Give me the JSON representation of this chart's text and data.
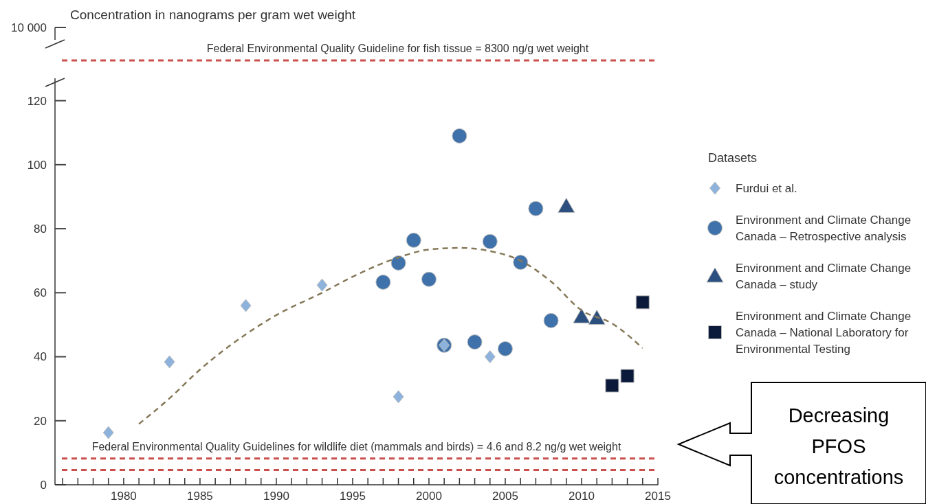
{
  "chart_data": [
    {
      "type": "other",
      "ylabel": "Concentration in nanograms per gram wet weight",
      "annotations": [
        "10 000",
        "Federal Environmental Quality Guideline for fish tissue = 8300 ng/g wet weight"
      ]
    },
    {
      "type": "scatter",
      "xlim": [
        1975.5,
        2015
      ],
      "ylim": [
        0,
        127
      ],
      "xticks": [
        {
          "value": 1976,
          "label": null
        },
        {
          "value": 1977,
          "label": null
        },
        {
          "value": 1978,
          "label": null
        },
        {
          "value": 1979,
          "label": null
        },
        1980,
        {
          "value": 1981,
          "label": null
        },
        {
          "value": 1982,
          "label": null
        },
        {
          "value": 1983,
          "label": null
        },
        {
          "value": 1984,
          "label": null
        },
        1985,
        {
          "value": 1986,
          "label": null
        },
        {
          "value": 1987,
          "label": null
        },
        {
          "value": 1988,
          "label": null
        },
        {
          "value": 1989,
          "label": null
        },
        1990,
        {
          "value": 1991,
          "label": null
        },
        {
          "value": 1992,
          "label": null
        },
        {
          "value": 1993,
          "label": null
        },
        {
          "value": 1994,
          "label": null
        },
        1995,
        {
          "value": 1996,
          "label": null
        },
        {
          "value": 1997,
          "label": null
        },
        {
          "value": 1998,
          "label": null
        },
        {
          "value": 1999,
          "label": null
        },
        2000,
        {
          "value": 2001,
          "label": null
        },
        {
          "value": 2002,
          "label": null
        },
        {
          "value": 2003,
          "label": null
        },
        {
          "value": 2004,
          "label": null
        },
        2005,
        {
          "value": 2006,
          "label": null
        },
        {
          "value": 2007,
          "label": null
        },
        {
          "value": 2008,
          "label": null
        },
        {
          "value": 2009,
          "label": null
        },
        2010,
        {
          "value": 2011,
          "label": null
        },
        {
          "value": 2012,
          "label": null
        },
        {
          "value": 2013,
          "label": null
        },
        {
          "value": 2014,
          "label": null
        },
        2015
      ],
      "yticks": [
        0,
        20,
        40,
        60,
        80,
        100,
        120
      ],
      "legend": "right",
      "legend_title": "Datasets",
      "series": [
        {
          "type": "line",
          "color": "#857858",
          "marker": "none",
          "line_style": "dashed",
          "x": [
            1981,
            1983,
            1985,
            1988,
            1990,
            1993,
            1995,
            1998,
            2000,
            2002,
            2004,
            2006,
            2008,
            2010,
            2012,
            2014
          ],
          "values": [
            19,
            27,
            36,
            47,
            53,
            60,
            65,
            71,
            73.5,
            74,
            73,
            70,
            63.5,
            54.5,
            50.4,
            42.7
          ]
        },
        {
          "name": "Furdui et al.",
          "color": "#8db3dd",
          "marker": "diamond",
          "x": [
            1979,
            1983,
            1988,
            1993,
            1998,
            2001,
            2004
          ],
          "values": [
            16.3,
            38.4,
            56,
            62.4,
            27.5,
            43.6,
            40
          ]
        },
        {
          "name": "Environment and Climate Change Canada – Retrospective analysis",
          "color": "#3f72aa",
          "marker": "circle",
          "x": [
            1997,
            1998,
            1999,
            2000,
            2001,
            2002,
            2003,
            2004,
            2005,
            2006,
            2007,
            2008
          ],
          "values": [
            63.3,
            69.3,
            76.4,
            64.2,
            43.6,
            109,
            44.6,
            76,
            42.5,
            69.5,
            86.3,
            51.3
          ]
        },
        {
          "name": "Environment and Climate Change Canada – study",
          "color": "#2b4f7e",
          "marker": "triangle",
          "x": [
            2009,
            2010,
            2011
          ],
          "values": [
            87,
            52.5,
            52
          ]
        },
        {
          "name": "Environment and Climate Change Canada – National Laboratory for Environmental Testing",
          "color": "#0b1a3a",
          "marker": "square",
          "x": [
            2012,
            2013,
            2014
          ],
          "values": [
            31,
            34,
            57
          ]
        }
      ],
      "ref_lines": [
        {
          "axis": "y",
          "value": 8.2,
          "label": "Federal Environmental Quality Guidelines for wildlife diet (mammals and birds) = 4.6 and 8.2 ng/g wet weight",
          "color": "#c9504d",
          "line_style": "dashed"
        },
        {
          "axis": "y",
          "value": 4.6,
          "color": "#c9504d",
          "line_style": "dashed"
        }
      ],
      "annotations": [
        "Decreasing PFOS concentrations"
      ]
    }
  ]
}
